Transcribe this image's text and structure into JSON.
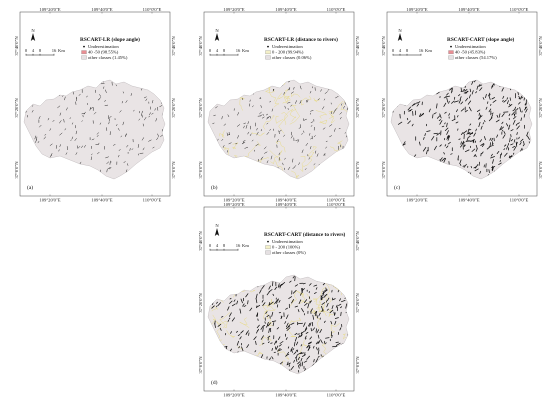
{
  "lon_ticks": [
    "109°20'0\"E",
    "109°40'0\"E",
    "110°0'0\"E"
  ],
  "lat_ticks": [
    "37°40'0\"N",
    "37°20'0\"N",
    "37°0'0\"N"
  ],
  "compass": {
    "label": "N",
    "icon": "north-arrow-icon"
  },
  "scale": {
    "numbers": [
      "0",
      "4",
      "8",
      "16"
    ],
    "unit": "Km"
  },
  "marker_label": "Underestimation",
  "colors": {
    "background": "#ffffff",
    "region_fill": "#e9e4e5",
    "region_border": "#b9b3b5",
    "slope_class": "#e98e93",
    "river_class": "#f4f0c8",
    "river_lines": "#e8d97a",
    "other_class": "#e5e0e2",
    "underestimation": "#111111"
  },
  "panels": [
    {
      "label": "(a)",
      "title": "RSCART-LR (slope angle)",
      "class1": "40 -50 (98.55%)",
      "class2": "other classes (1.45%)",
      "class1_color": "#e98e93",
      "density": "low",
      "rivers": false
    },
    {
      "label": "(b)",
      "title": "RSCART-LR (distance to rivers)",
      "class1": "0 - 200 (99.94%)",
      "class2": "other classes (0.06%)",
      "class1_color": "#f4f0c8",
      "density": "low",
      "rivers": true
    },
    {
      "label": "(c)",
      "title": "RSCART-CART (slope angle)",
      "class1": "40 -50 (45.83%)",
      "class2": "other classes (54.17%)",
      "class1_color": "#e98e93",
      "density": "high",
      "rivers": false
    },
    {
      "label": "(d)",
      "title": "RSCART-CART (distance to rivers)",
      "class1": "0 - 200 (100%)",
      "class2": "other classes (0%)",
      "class1_color": "#f4f0c8",
      "density": "high",
      "rivers": true
    }
  ]
}
